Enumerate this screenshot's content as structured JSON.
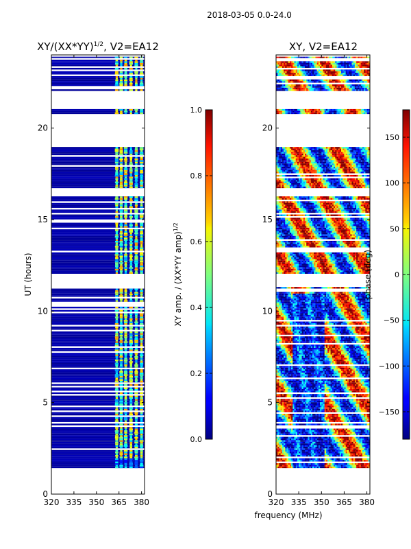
{
  "figure": {
    "suptitle": "2018-03-05 0.0-24.0",
    "xlabel": "frequency (MHz)"
  },
  "chart_data": [
    {
      "type": "heatmap",
      "title_main": "XY/(XX*YY)",
      "title_sup": "1/2",
      "title_rest": ", V2=EA12",
      "xlabel": "",
      "ylabel": "UT (hours)",
      "xlim": [
        320,
        382
      ],
      "ylim": [
        0,
        24
      ],
      "xticks": [
        320,
        335,
        350,
        365,
        380
      ],
      "yticks": [
        0,
        5,
        10,
        15,
        20
      ],
      "data_extent": {
        "x": [
          320,
          382
        ],
        "y": [
          1.15,
          23.9
        ]
      },
      "gaps_hours": [
        [
          21.05,
          22.0
        ],
        [
          19.0,
          20.8
        ],
        [
          16.3,
          16.7
        ],
        [
          11.3,
          12.0
        ],
        [
          1.15,
          1.45
        ]
      ],
      "band_columns_mhz": [
        363.5,
        366.5,
        369.5,
        373.0,
        376.5,
        380.0
      ],
      "colorbar": {
        "label_main": "XY amp. / (XX*YY amp)",
        "label_sup": "1/2",
        "range": [
          0.0,
          1.0
        ],
        "ticks": [
          "0.0",
          "0.2",
          "0.4",
          "0.6",
          "0.8",
          "1.0"
        ],
        "tick_values": [
          0.0,
          0.2,
          0.4,
          0.6,
          0.8,
          1.0
        ],
        "colormap": "jet"
      }
    },
    {
      "type": "heatmap",
      "title": "XY, V2=EA12",
      "xlabel": "",
      "ylabel": "",
      "xlim": [
        320,
        382
      ],
      "ylim": [
        0,
        24
      ],
      "xticks": [
        320,
        335,
        350,
        365,
        380
      ],
      "yticks": [
        0,
        5,
        10,
        15,
        20
      ],
      "data_extent": {
        "x": [
          320,
          382
        ],
        "y": [
          1.15,
          23.9
        ]
      },
      "gaps_hours": [
        [
          21.05,
          22.0
        ],
        [
          19.0,
          20.8
        ],
        [
          16.3,
          16.7
        ],
        [
          11.3,
          12.0
        ],
        [
          1.15,
          1.45
        ]
      ],
      "colorbar": {
        "label": "phase (deg)",
        "range": [
          -180,
          180
        ],
        "ticks": [
          "150",
          "100",
          "50",
          "0",
          "−50",
          "−100",
          "−150"
        ],
        "tick_values": [
          150,
          100,
          50,
          0,
          -50,
          -100,
          -150
        ],
        "colormap": "jet"
      }
    }
  ]
}
